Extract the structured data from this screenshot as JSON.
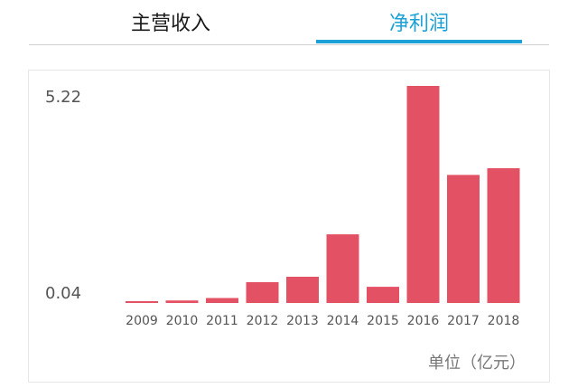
{
  "tabs": [
    {
      "label": "主营收入",
      "active": false
    },
    {
      "label": "净利润",
      "active": true
    }
  ],
  "colors": {
    "accent": "#1ba1d6",
    "bar": "#e35164"
  },
  "chart_data": {
    "type": "bar",
    "categories": [
      "2009",
      "2010",
      "2011",
      "2012",
      "2013",
      "2014",
      "2015",
      "2016",
      "2017",
      "2018"
    ],
    "values": [
      0.04,
      0.06,
      0.12,
      0.5,
      0.63,
      1.65,
      0.39,
      5.22,
      3.08,
      3.24
    ],
    "y_tick_labels": [
      "0.04",
      "5.22"
    ],
    "ylim": [
      0,
      5.22
    ],
    "unit": "单位（亿元）",
    "grid": false,
    "legend": "none"
  }
}
